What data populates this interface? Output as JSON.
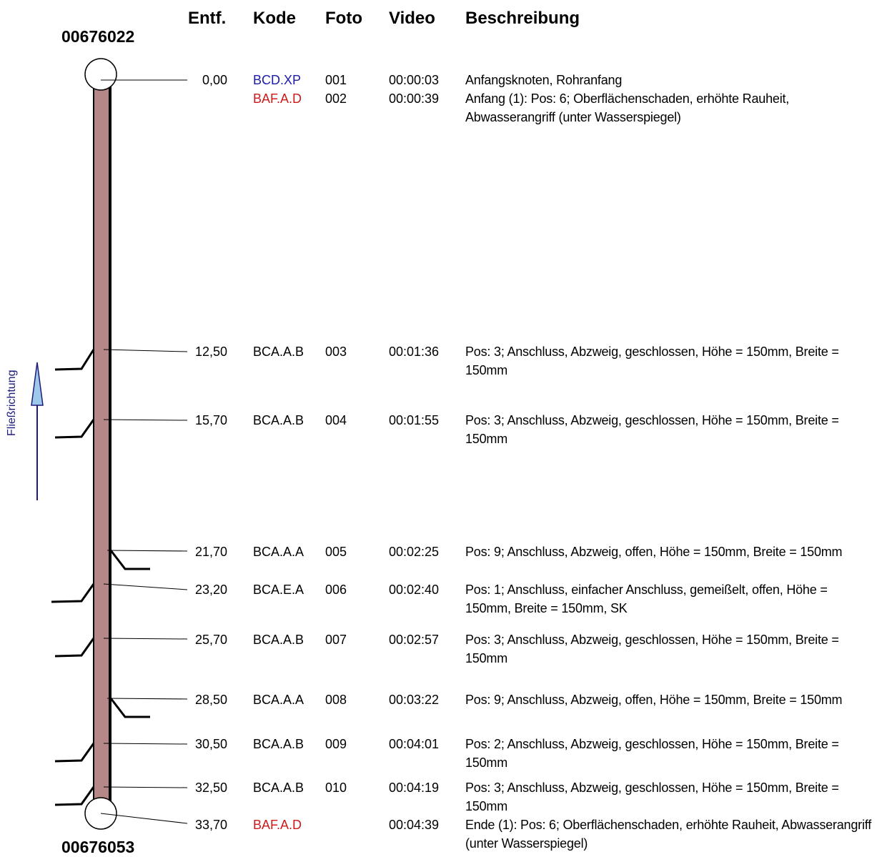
{
  "headers": {
    "distance": "Entf.",
    "code": "Kode",
    "photo": "Foto",
    "video": "Video",
    "description": "Beschreibung"
  },
  "start_node": "00676022",
  "end_node": "00676053",
  "flow_direction_label": "Fließrichtung",
  "colors": {
    "pipe_fill": "#b58887",
    "code_blue": "#1c1ca8",
    "code_red": "#cc1a1a",
    "flow_arrow": "#1d1c7a",
    "flow_arrow_fill": "#9fc9ea"
  },
  "observations": [
    {
      "distance": "0,00",
      "code": "BCD.XP",
      "code_color": "blue",
      "photo": "001",
      "video": "00:00:03",
      "description": "Anfangsknoten, Rohranfang"
    },
    {
      "distance": "",
      "code": "BAF.A.D",
      "code_color": "red",
      "photo": "002",
      "video": "00:00:39",
      "description": "Anfang (1): Pos: 6; Oberflächenschaden, erhöhte Rauheit, Abwasserangriff (unter Wasserspiegel)"
    },
    {
      "distance": "12,50",
      "code": "BCA.A.B",
      "code_color": "black",
      "photo": "003",
      "video": "00:01:36",
      "description": "Pos: 3; Anschluss, Abzweig, geschlossen, Höhe = 150mm, Breite = 150mm"
    },
    {
      "distance": "15,70",
      "code": "BCA.A.B",
      "code_color": "black",
      "photo": "004",
      "video": "00:01:55",
      "description": "Pos: 3; Anschluss, Abzweig, geschlossen, Höhe = 150mm, Breite = 150mm"
    },
    {
      "distance": "21,70",
      "code": "BCA.A.A",
      "code_color": "black",
      "photo": "005",
      "video": "00:02:25",
      "description": "Pos: 9; Anschluss, Abzweig, offen, Höhe = 150mm, Breite = 150mm"
    },
    {
      "distance": "23,20",
      "code": "BCA.E.A",
      "code_color": "black",
      "photo": "006",
      "video": "00:02:40",
      "description": "Pos: 1; Anschluss, einfacher Anschluss, gemeißelt, offen, Höhe = 150mm, Breite = 150mm, SK"
    },
    {
      "distance": "25,70",
      "code": "BCA.A.B",
      "code_color": "black",
      "photo": "007",
      "video": "00:02:57",
      "description": "Pos: 3; Anschluss, Abzweig, geschlossen, Höhe = 150mm, Breite = 150mm"
    },
    {
      "distance": "28,50",
      "code": "BCA.A.A",
      "code_color": "black",
      "photo": "008",
      "video": "00:03:22",
      "description": "Pos: 9; Anschluss, Abzweig, offen, Höhe = 150mm, Breite = 150mm"
    },
    {
      "distance": "30,50",
      "code": "BCA.A.B",
      "code_color": "black",
      "photo": "009",
      "video": "00:04:01",
      "description": "Pos: 2; Anschluss, Abzweig, geschlossen, Höhe = 150mm, Breite = 150mm"
    },
    {
      "distance": "32,50",
      "code": "BCA.A.B",
      "code_color": "black",
      "photo": "010",
      "video": "00:04:19",
      "description": "Pos: 3; Anschluss, Abzweig, geschlossen, Höhe = 150mm, Breite = 150mm"
    },
    {
      "distance": "33,70",
      "code": "BAF.A.D",
      "code_color": "red",
      "photo": "",
      "video": "00:04:39",
      "description": "Ende (1): Pos: 6; Oberflächenschaden, erhöhte Rauheit, Abwasserangriff (unter Wasserspiegel)"
    }
  ]
}
